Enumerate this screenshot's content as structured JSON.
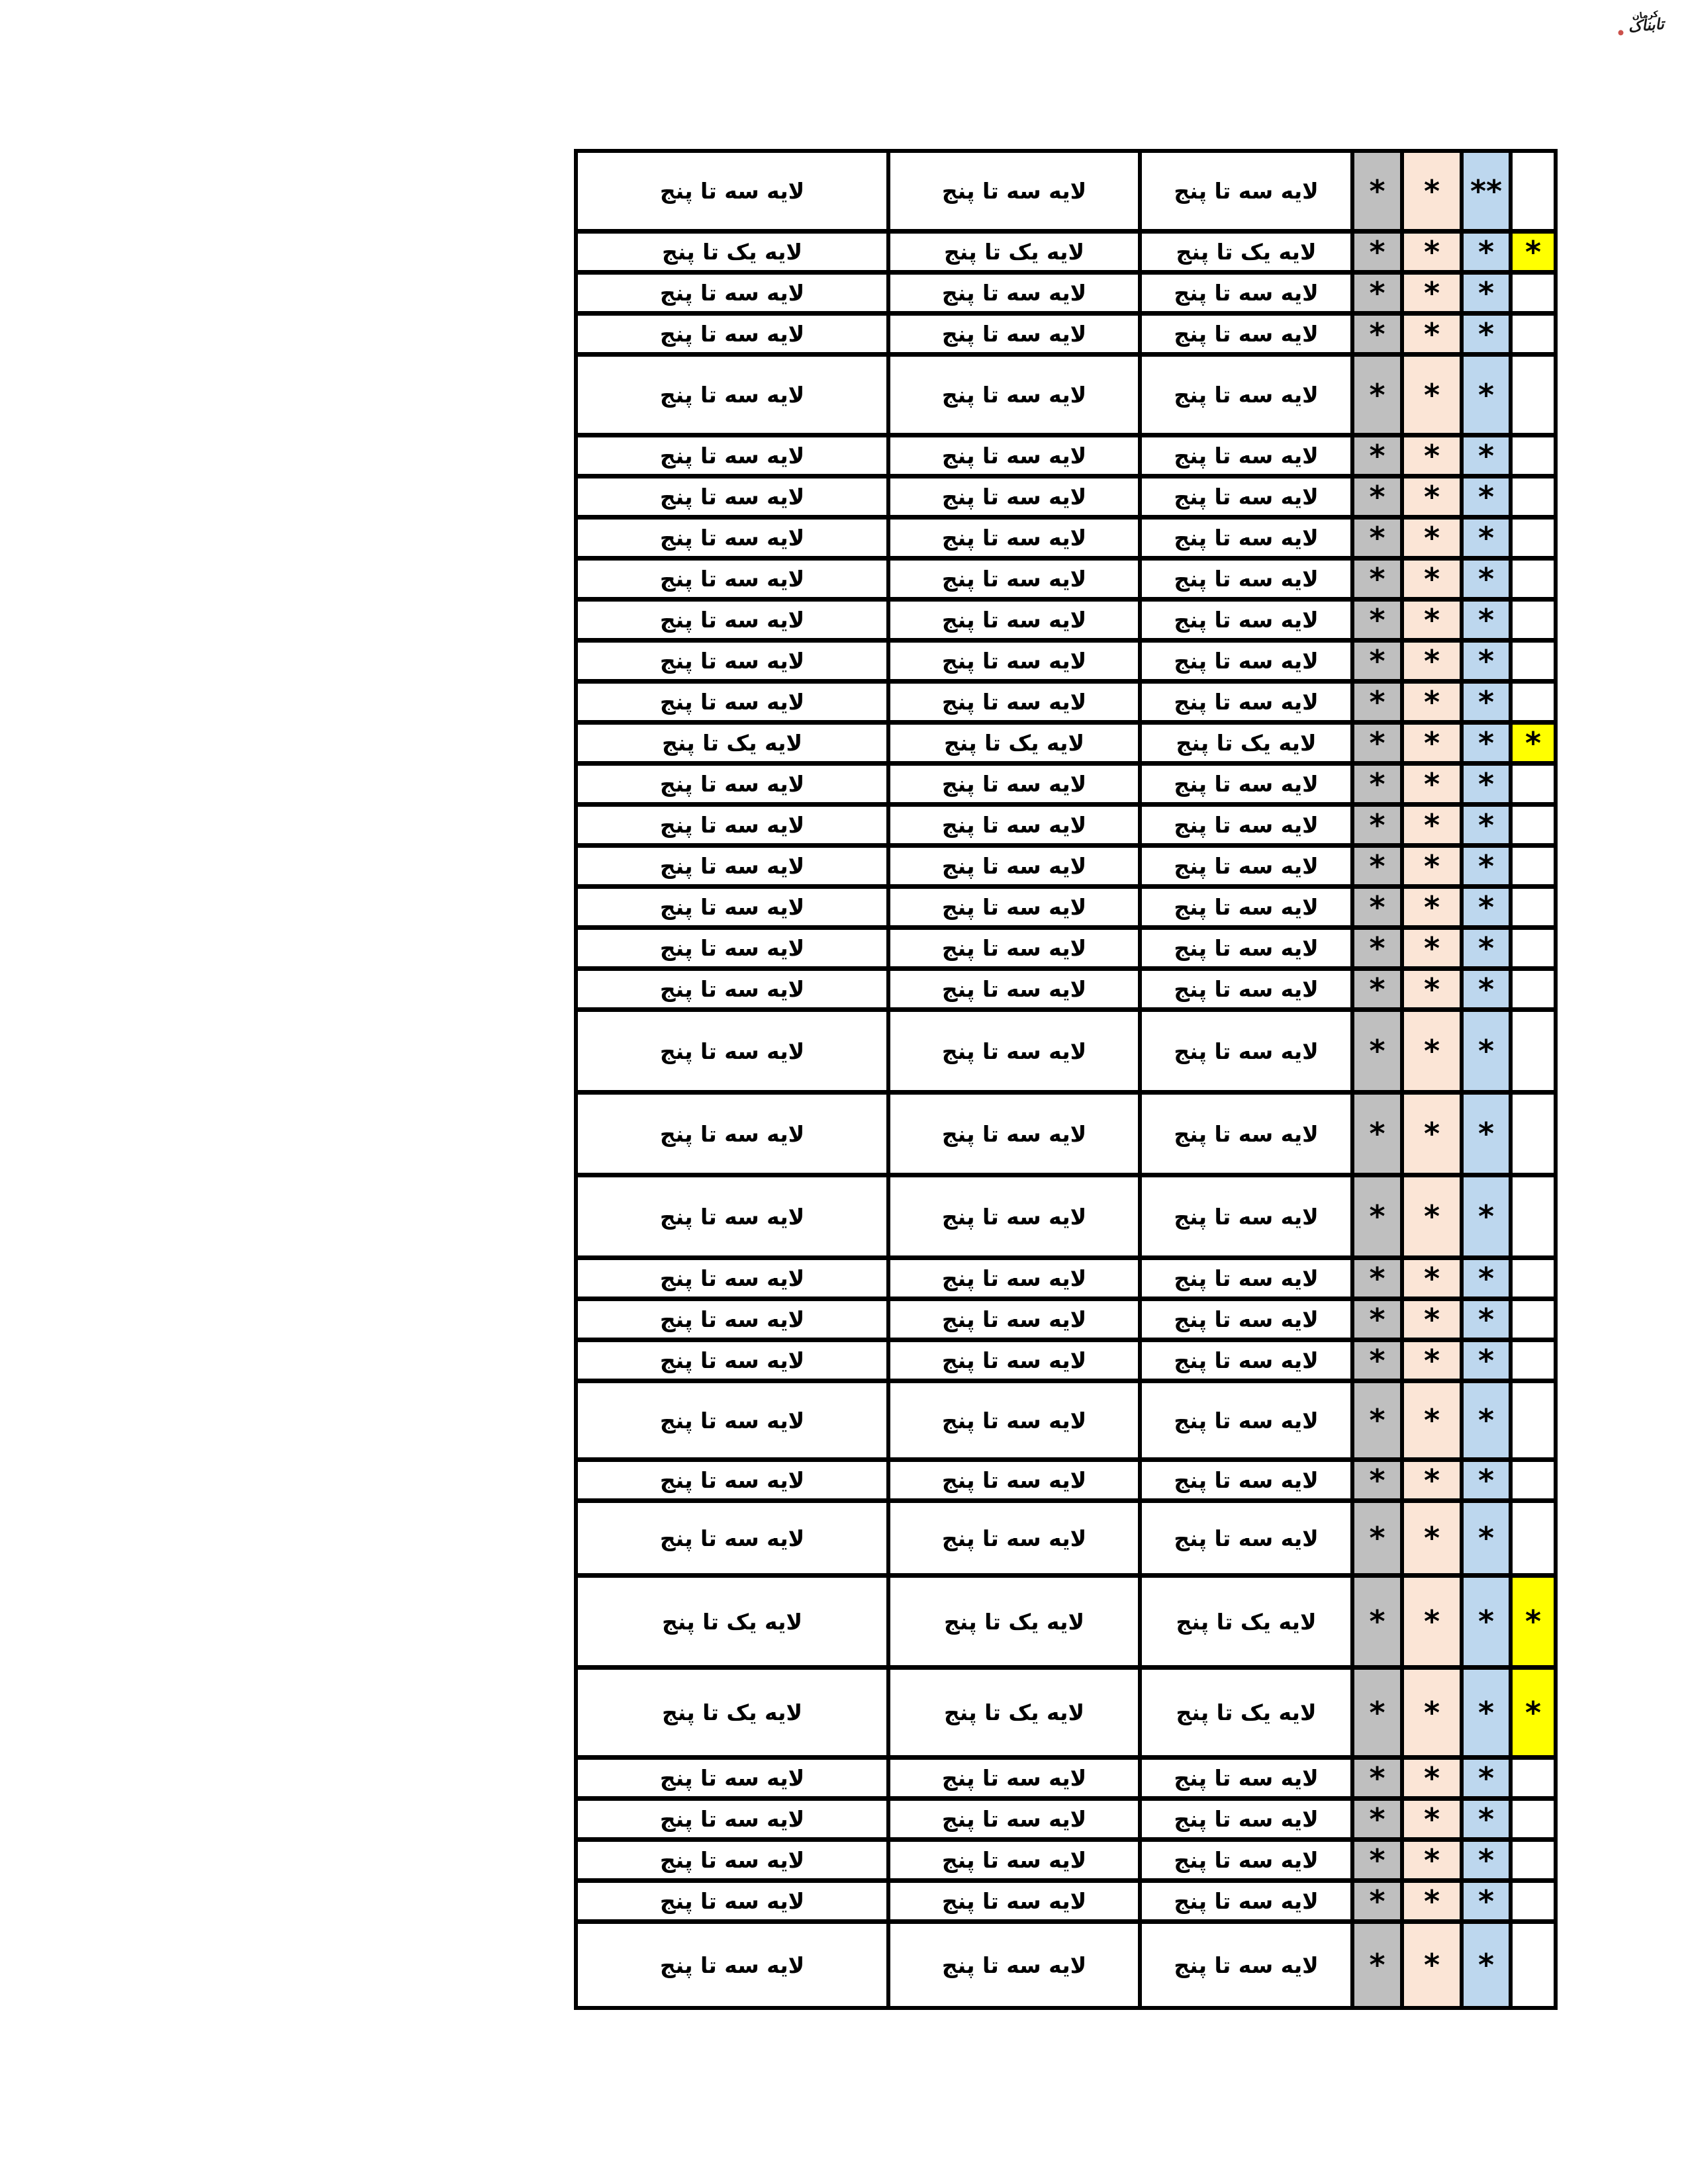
{
  "logo": {
    "main_text": "تابناک",
    "small_text": "کرمان"
  },
  "labels": {
    "layer_three_to_five": "لایه سه تا پنج",
    "layer_one_to_five": "لایه یک تا پنج",
    "star": "*",
    "double_star": "**"
  },
  "colors": {
    "gray": "#BFBFBF",
    "peach": "#FBE5D6",
    "blue": "#BDD7EE",
    "yellow": "#FFFF00",
    "border": "#000000"
  },
  "table": {
    "rows": [
      {
        "layer": "لایه سه تا پنج",
        "h": 122,
        "marks": [
          "*",
          "*",
          "**",
          ""
        ],
        "highlight": false
      },
      {
        "layer": "لایه یک تا پنج",
        "h": 62,
        "marks": [
          "*",
          "*",
          "*",
          "*"
        ],
        "highlight": true
      },
      {
        "layer": "لایه سه تا پنج",
        "h": 62,
        "marks": [
          "*",
          "*",
          "*",
          ""
        ],
        "highlight": false
      },
      {
        "layer": "لایه سه تا پنج",
        "h": 62,
        "marks": [
          "*",
          "*",
          "*",
          ""
        ],
        "highlight": false
      },
      {
        "layer": "لایه سه تا پنج",
        "h": 122,
        "marks": [
          "*",
          "*",
          "*",
          ""
        ],
        "highlight": false
      },
      {
        "layer": "لایه سه تا پنج",
        "h": 62,
        "marks": [
          "*",
          "*",
          "*",
          ""
        ],
        "highlight": false
      },
      {
        "layer": "لایه سه تا پنج",
        "h": 62,
        "marks": [
          "*",
          "*",
          "*",
          ""
        ],
        "highlight": false
      },
      {
        "layer": "لایه سه تا پنج",
        "h": 62,
        "marks": [
          "*",
          "*",
          "*",
          ""
        ],
        "highlight": false
      },
      {
        "layer": "لایه سه تا پنج",
        "h": 62,
        "marks": [
          "*",
          "*",
          "*",
          ""
        ],
        "highlight": false
      },
      {
        "layer": "لایه سه تا پنج",
        "h": 62,
        "marks": [
          "*",
          "*",
          "*",
          ""
        ],
        "highlight": false
      },
      {
        "layer": "لایه سه تا پنج",
        "h": 62,
        "marks": [
          "*",
          "*",
          "*",
          ""
        ],
        "highlight": false
      },
      {
        "layer": "لایه سه تا پنج",
        "h": 62,
        "marks": [
          "*",
          "*",
          "*",
          ""
        ],
        "highlight": false
      },
      {
        "layer": "لایه یک تا پنج",
        "h": 62,
        "marks": [
          "*",
          "*",
          "*",
          "*"
        ],
        "highlight": true
      },
      {
        "layer": "لایه سه تا پنج",
        "h": 62,
        "marks": [
          "*",
          "*",
          "*",
          ""
        ],
        "highlight": false
      },
      {
        "layer": "لایه سه تا پنج",
        "h": 62,
        "marks": [
          "*",
          "*",
          "*",
          ""
        ],
        "highlight": false
      },
      {
        "layer": "لایه سه تا پنج",
        "h": 62,
        "marks": [
          "*",
          "*",
          "*",
          ""
        ],
        "highlight": false
      },
      {
        "layer": "لایه سه تا پنج",
        "h": 62,
        "marks": [
          "*",
          "*",
          "*",
          ""
        ],
        "highlight": false
      },
      {
        "layer": "لایه سه تا پنج",
        "h": 62,
        "marks": [
          "*",
          "*",
          "*",
          ""
        ],
        "highlight": false
      },
      {
        "layer": "لایه سه تا پنج",
        "h": 62,
        "marks": [
          "*",
          "*",
          "*",
          ""
        ],
        "highlight": false
      },
      {
        "layer": "لایه سه تا پنج",
        "h": 125,
        "marks": [
          "*",
          "*",
          "*",
          ""
        ],
        "highlight": false
      },
      {
        "layer": "لایه سه تا پنج",
        "h": 125,
        "marks": [
          "*",
          "*",
          "*",
          ""
        ],
        "highlight": false
      },
      {
        "layer": "لایه سه تا پنج",
        "h": 125,
        "marks": [
          "*",
          "*",
          "*",
          ""
        ],
        "highlight": false
      },
      {
        "layer": "لایه سه تا پنج",
        "h": 62,
        "marks": [
          "*",
          "*",
          "*",
          ""
        ],
        "highlight": false
      },
      {
        "layer": "لایه سه تا پنج",
        "h": 62,
        "marks": [
          "*",
          "*",
          "*",
          ""
        ],
        "highlight": false
      },
      {
        "layer": "لایه سه تا پنج",
        "h": 62,
        "marks": [
          "*",
          "*",
          "*",
          ""
        ],
        "highlight": false
      },
      {
        "layer": "لایه سه تا پنج",
        "h": 119,
        "marks": [
          "*",
          "*",
          "*",
          ""
        ],
        "highlight": false
      },
      {
        "layer": "لایه سه تا پنج",
        "h": 62,
        "marks": [
          "*",
          "*",
          "*",
          ""
        ],
        "highlight": false
      },
      {
        "layer": "لایه سه تا پنج",
        "h": 113,
        "marks": [
          "*",
          "*",
          "*",
          ""
        ],
        "highlight": false
      },
      {
        "layer": "لایه یک تا پنج",
        "h": 139,
        "marks": [
          "*",
          "*",
          "*",
          "*"
        ],
        "highlight": true
      },
      {
        "layer": "لایه یک تا پنج",
        "h": 136,
        "marks": [
          "*",
          "*",
          "*",
          "*"
        ],
        "highlight": true
      },
      {
        "layer": "لایه سه تا پنج",
        "h": 62,
        "marks": [
          "*",
          "*",
          "*",
          ""
        ],
        "highlight": false
      },
      {
        "layer": "لایه سه تا پنج",
        "h": 62,
        "marks": [
          "*",
          "*",
          "*",
          ""
        ],
        "highlight": false
      },
      {
        "layer": "لایه سه تا پنج",
        "h": 62,
        "marks": [
          "*",
          "*",
          "*",
          ""
        ],
        "highlight": false
      },
      {
        "layer": "لایه سه تا پنج",
        "h": 62,
        "marks": [
          "*",
          "*",
          "*",
          ""
        ],
        "highlight": false
      },
      {
        "layer": "لایه سه تا پنج",
        "h": 131,
        "marks": [
          "*",
          "*",
          "*",
          ""
        ],
        "highlight": false
      }
    ]
  }
}
